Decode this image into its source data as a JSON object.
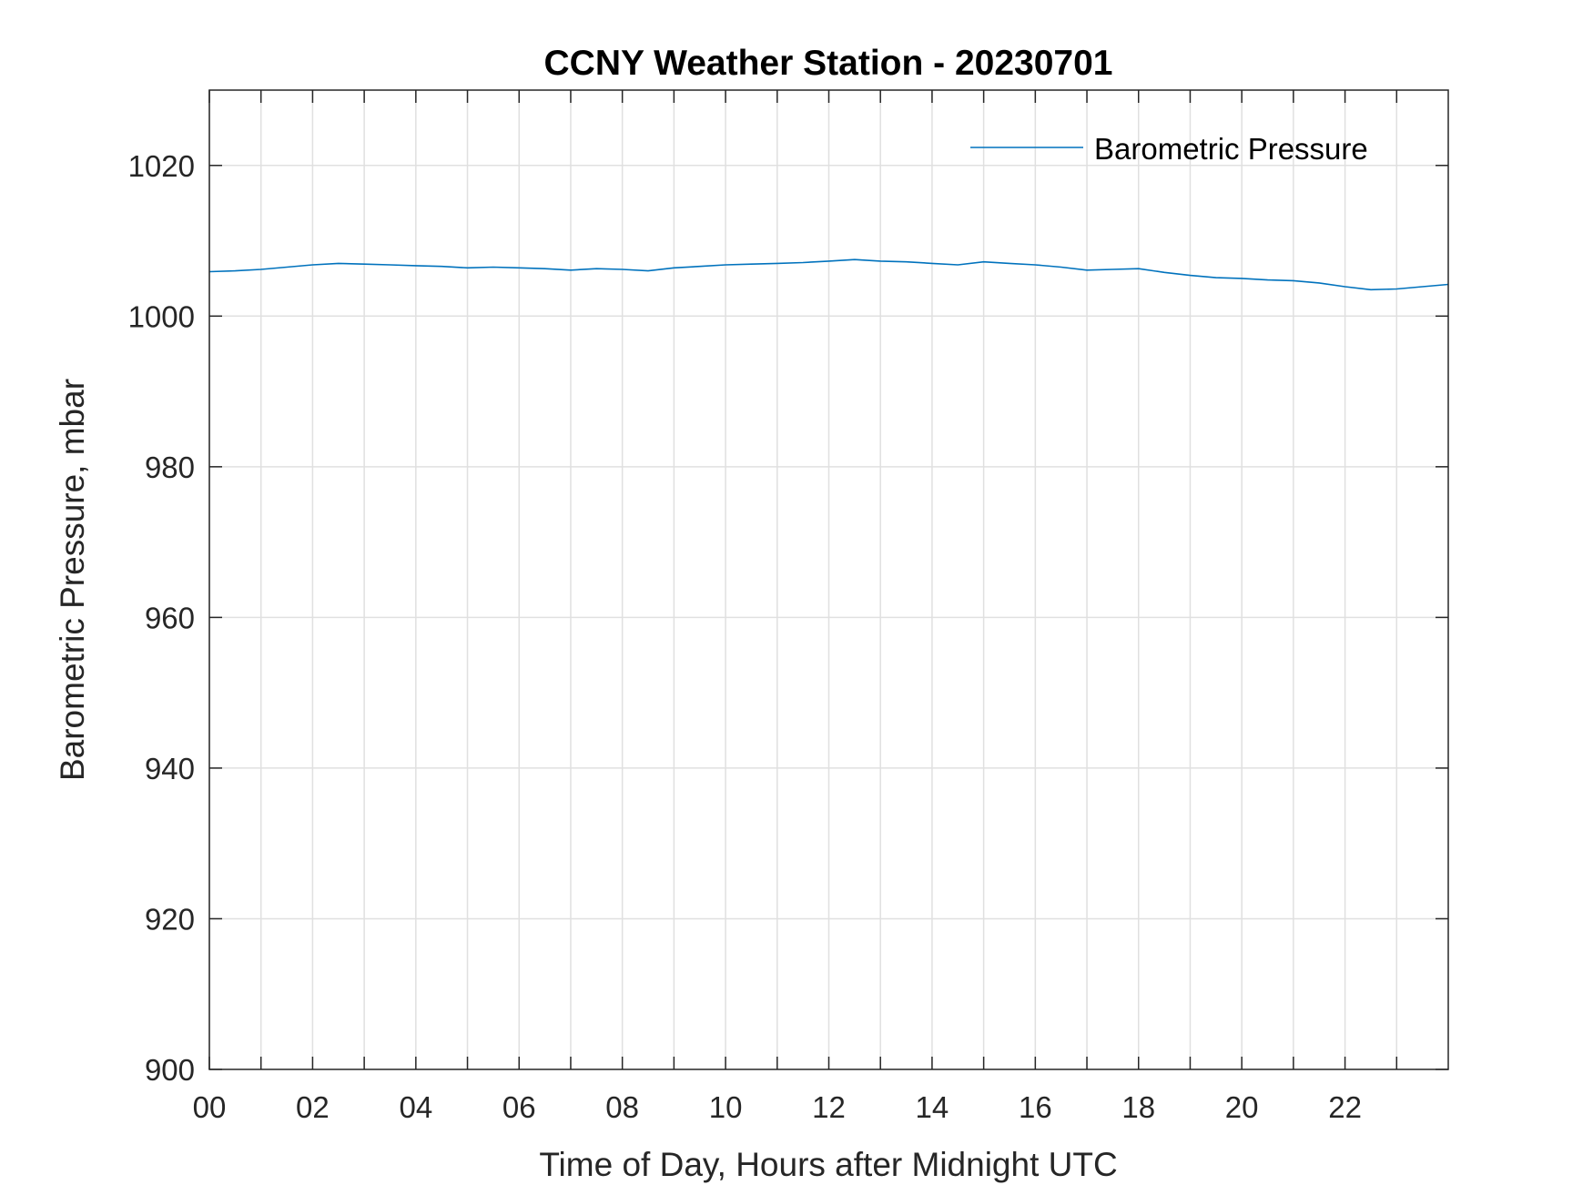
{
  "chart_data": {
    "type": "line",
    "title": "CCNY Weather Station - 20230701",
    "xlabel": "Time of Day, Hours after Midnight UTC",
    "ylabel": "Barometric Pressure, mbar",
    "xlim": [
      0,
      24
    ],
    "ylim": [
      900,
      1030
    ],
    "xticks": [
      0,
      1,
      2,
      3,
      4,
      5,
      6,
      7,
      8,
      9,
      10,
      11,
      12,
      13,
      14,
      15,
      16,
      17,
      18,
      19,
      20,
      21,
      22,
      23
    ],
    "xticklabels": [
      "00",
      "02",
      "04",
      "06",
      "08",
      "10",
      "12",
      "14",
      "16",
      "18",
      "20",
      "22"
    ],
    "xticklabel_values": [
      0,
      2,
      4,
      6,
      8,
      10,
      12,
      14,
      16,
      18,
      20,
      22
    ],
    "yticks": [
      900,
      920,
      940,
      960,
      980,
      1000,
      1020
    ],
    "yticklabels": [
      "900",
      "920",
      "940",
      "960",
      "980",
      "1000",
      "1020"
    ],
    "grid": true,
    "legend_position": "top-right",
    "series": [
      {
        "name": "Barometric Pressure",
        "color": "#0072BD",
        "x": [
          0,
          0.5,
          1,
          1.5,
          2,
          2.5,
          3,
          3.5,
          4,
          4.5,
          5,
          5.5,
          6,
          6.5,
          7,
          7.5,
          8,
          8.5,
          9,
          9.5,
          10,
          10.5,
          11,
          11.5,
          12,
          12.5,
          13,
          13.5,
          14,
          14.5,
          15,
          15.5,
          16,
          16.5,
          17,
          17.5,
          18,
          18.5,
          19,
          19.5,
          20,
          20.5,
          21,
          21.5,
          22,
          22.5,
          23,
          23.5,
          24
        ],
        "y": [
          1005.9,
          1006.0,
          1006.2,
          1006.5,
          1006.8,
          1007.0,
          1006.9,
          1006.8,
          1006.7,
          1006.6,
          1006.4,
          1006.5,
          1006.4,
          1006.3,
          1006.1,
          1006.3,
          1006.2,
          1006.0,
          1006.4,
          1006.6,
          1006.8,
          1006.9,
          1007.0,
          1007.1,
          1007.3,
          1007.5,
          1007.3,
          1007.2,
          1007.0,
          1006.8,
          1007.2,
          1007.0,
          1006.8,
          1006.5,
          1006.1,
          1006.2,
          1006.3,
          1005.8,
          1005.4,
          1005.1,
          1005.0,
          1004.8,
          1004.7,
          1004.4,
          1003.9,
          1003.5,
          1003.6,
          1003.9,
          1004.2
        ]
      }
    ]
  }
}
